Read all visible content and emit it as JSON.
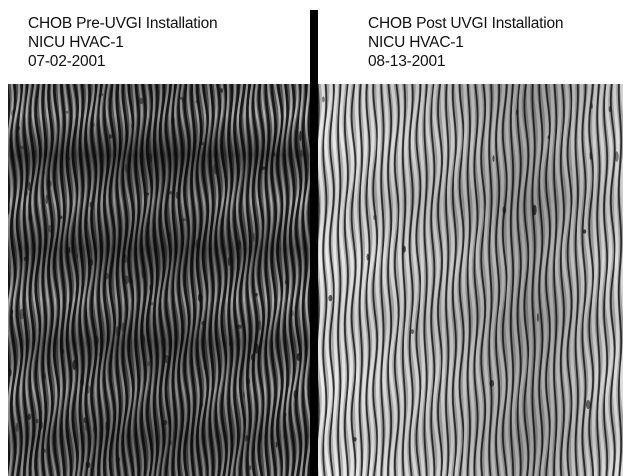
{
  "left_panel": {
    "caption": {
      "line1": "CHOB Pre-UVGI Installation",
      "line2": "NICU HVAC-1",
      "line3": "07-02-2001"
    }
  },
  "right_panel": {
    "caption": {
      "line1": "CHOB Post UVGI Installation",
      "line2": "NICU HVAC-1",
      "line3": "08-13-2001"
    }
  },
  "colors": {
    "fin_dark": "#111111",
    "fin_light": "#f4f4f4",
    "divider": "#000000"
  }
}
